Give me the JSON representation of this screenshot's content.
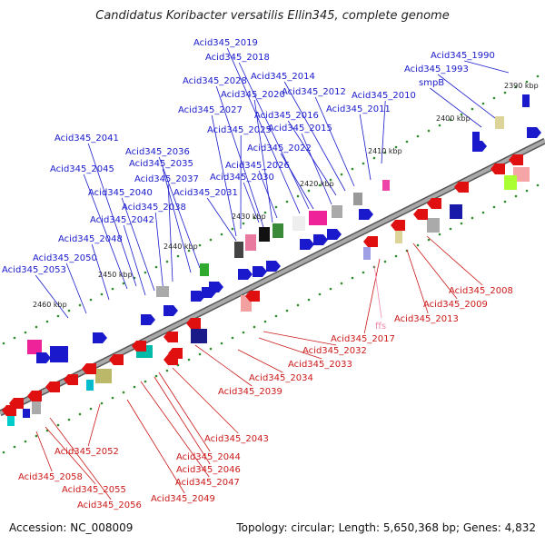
{
  "title": "Candidatus Koribacter versatilis Ellin345, complete genome",
  "footer": {
    "accession": "Accession: NC_008009",
    "topology": "Topology: circular; Length: 5,650,368 bp; Genes: 4,832"
  },
  "colors": {
    "plus_label": "#1a1acc",
    "minus_label": "#cc1a1a",
    "rna_label": "#ee88aa",
    "backbone": "#7a7a7a"
  },
  "kbp_ticks": [
    {
      "label": "2390 kbp",
      "pos": 0
    },
    {
      "label": "2400 kbp",
      "pos": 1
    },
    {
      "label": "2410 kbp",
      "pos": 2
    },
    {
      "label": "2420 kbp",
      "pos": 3
    },
    {
      "label": "2430 kbp",
      "pos": 4
    },
    {
      "label": "2440 kbp",
      "pos": 5
    },
    {
      "label": "2450 kbp",
      "pos": 6
    },
    {
      "label": "2460 kbp",
      "pos": 7
    }
  ],
  "plus_labels": [
    "Acid345_1990",
    "Acid345_1993",
    "smpB",
    "Acid345_2019",
    "Acid345_2018",
    "Acid345_2014",
    "Acid345_2028",
    "Acid345_2020",
    "Acid345_2012",
    "Acid345_2010",
    "Acid345_2027",
    "Acid345_2011",
    "Acid345_2016",
    "Acid345_2025",
    "Acid345_2015",
    "Acid345_2041",
    "Acid345_2022",
    "Acid345_2036",
    "Acid345_2026",
    "Acid345_2035",
    "Acid345_2045",
    "Acid345_2037",
    "Acid345_2030",
    "Acid345_2040",
    "Acid345_2031",
    "Acid345_2038",
    "Acid345_2042",
    "Acid345_2048",
    "Acid345_2050",
    "Acid345_2053"
  ],
  "minus_labels": [
    "Acid345_2008",
    "Acid345_2009",
    "Acid345_2013",
    "Acid345_2017",
    "Acid345_2032",
    "Acid345_2033",
    "Acid345_2034",
    "Acid345_2039",
    "Acid345_2043",
    "Acid345_2052",
    "Acid345_2044",
    "Acid345_2046",
    "Acid345_2047",
    "Acid345_2058",
    "Acid345_2055",
    "Acid345_2049",
    "Acid345_2056"
  ],
  "rna_labels": [
    "ffs"
  ]
}
